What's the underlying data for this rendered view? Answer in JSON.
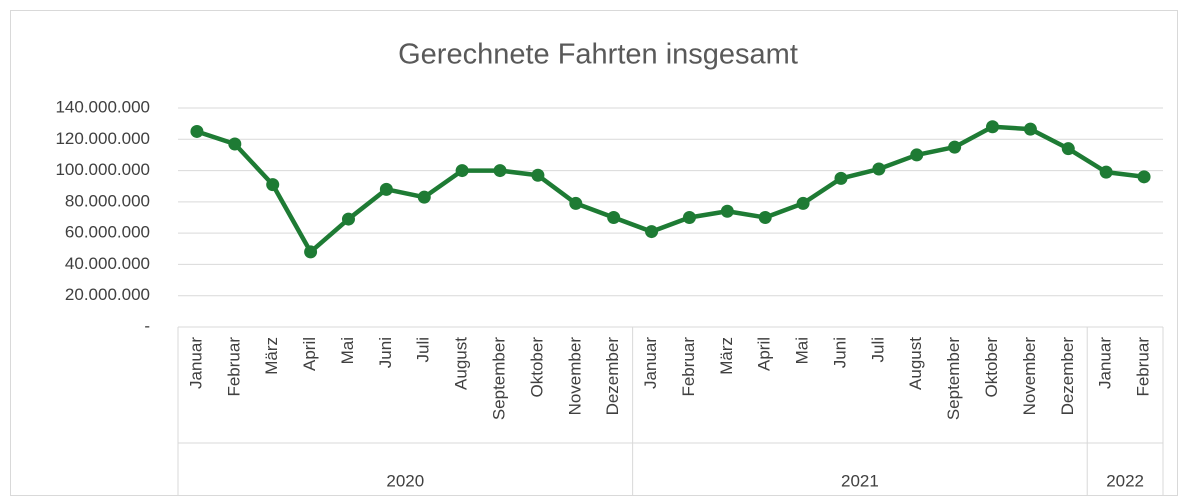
{
  "chart_data": {
    "type": "line",
    "title": "Gerechnete Fahrten insgesamt",
    "categories": [
      "Januar",
      "Februar",
      "März",
      "April",
      "Mai",
      "Juni",
      "Juli",
      "August",
      "September",
      "Oktober",
      "November",
      "Dezember",
      "Januar",
      "Februar",
      "März",
      "April",
      "Mai",
      "Juni",
      "Juli",
      "August",
      "September",
      "Oktober",
      "November",
      "Dezember",
      "Januar",
      "Februar"
    ],
    "x_groups": [
      {
        "label": "2020",
        "span": 12
      },
      {
        "label": "2021",
        "span": 12
      },
      {
        "label": "2022",
        "span": 2
      }
    ],
    "series": [
      {
        "name": "Gerechnete Fahrten insgesamt",
        "color": "#1e7b34",
        "values": [
          125000000,
          117000000,
          91000000,
          48000000,
          69000000,
          88000000,
          83000000,
          100000000,
          100000000,
          97000000,
          79000000,
          70000000,
          61000000,
          70000000,
          74000000,
          70000000,
          79000000,
          95000000,
          101000000,
          110000000,
          115000000,
          128000000,
          126500000,
          114000000,
          99000000,
          96000000
        ]
      }
    ],
    "ylim": [
      0,
      140000000
    ],
    "yticks": [
      {
        "value": 0,
        "label": "-"
      },
      {
        "value": 20000000,
        "label": "20.000.000"
      },
      {
        "value": 40000000,
        "label": "40.000.000"
      },
      {
        "value": 60000000,
        "label": "60.000.000"
      },
      {
        "value": 80000000,
        "label": "80.000.000"
      },
      {
        "value": 100000000,
        "label": "100.000.000"
      },
      {
        "value": 120000000,
        "label": "120.000.000"
      },
      {
        "value": 140000000,
        "label": "140.000.000"
      }
    ],
    "grid": true
  }
}
